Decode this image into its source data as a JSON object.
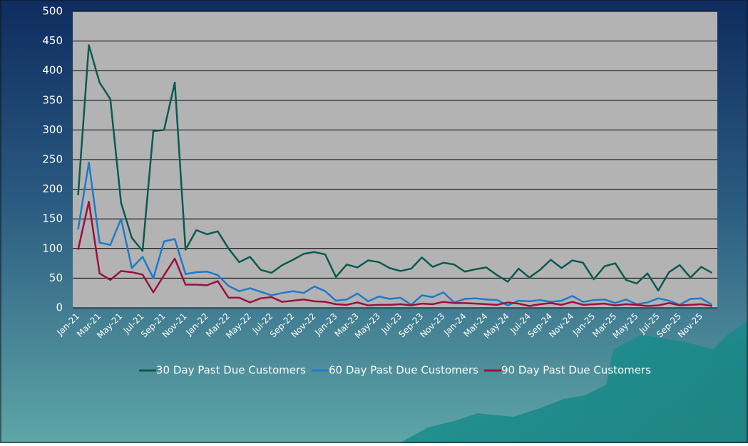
{
  "chart_data": {
    "type": "line",
    "categories": [
      "Jan-21",
      null,
      "Mar-21",
      null,
      "May-21",
      null,
      "Jul-21",
      null,
      "Sep-21",
      null,
      "Nov-21",
      null,
      "Jan-22",
      null,
      "Mar-22",
      null,
      "May-22",
      null,
      "Jul-22",
      null,
      "Sep-22",
      null,
      "Nov-22",
      null,
      "Jan-23",
      null,
      "Mar-23",
      null,
      "May-23",
      null,
      "Jul-23",
      null,
      "Sep-23",
      null,
      "Nov-23",
      null,
      "Jan-24",
      null,
      "Mar-24",
      null,
      "May-24",
      null,
      "Jul-24",
      null,
      "Sep-24",
      null,
      "Nov-24",
      null,
      "Jan-25",
      null,
      "Mar-25",
      null,
      "May-25",
      null,
      "Jul-25",
      null,
      "Sep-25",
      null,
      "Nov-25",
      null
    ],
    "series": [
      {
        "name": "30 Day Past Due Customers",
        "color": "#0b5a4e",
        "values": [
          190,
          443,
          380,
          352,
          177,
          118,
          96,
          298,
          300,
          380,
          98,
          131,
          124,
          129,
          100,
          77,
          86,
          64,
          59,
          72,
          81,
          91,
          94,
          90,
          52,
          73,
          68,
          80,
          77,
          67,
          62,
          66,
          85,
          69,
          76,
          73,
          61,
          65,
          68,
          55,
          44,
          66,
          51,
          64,
          81,
          67,
          80,
          76,
          48,
          70,
          75,
          47,
          41,
          58,
          29,
          60,
          72,
          51,
          69,
          59
        ]
      },
      {
        "name": "60 Day Past Due Customers",
        "color": "#1f7ac8",
        "values": [
          132,
          245,
          110,
          106,
          150,
          67,
          86,
          50,
          112,
          116,
          57,
          60,
          61,
          55,
          37,
          28,
          33,
          27,
          21,
          25,
          28,
          25,
          36,
          28,
          12,
          14,
          24,
          11,
          19,
          15,
          17,
          5,
          21,
          18,
          26,
          9,
          15,
          16,
          14,
          13,
          4,
          12,
          11,
          13,
          10,
          12,
          20,
          10,
          13,
          14,
          8,
          14,
          6,
          9,
          16,
          12,
          5,
          15,
          16,
          5
        ]
      },
      {
        "name": "90 Day Past Due Customers",
        "color": "#9a1040",
        "values": [
          98,
          179,
          58,
          47,
          62,
          60,
          56,
          26,
          55,
          83,
          39,
          39,
          38,
          45,
          17,
          17,
          9,
          16,
          18,
          10,
          12,
          14,
          11,
          10,
          6,
          5,
          9,
          4,
          5,
          5,
          6,
          4,
          7,
          6,
          10,
          8,
          8,
          7,
          6,
          5,
          9,
          7,
          3,
          6,
          8,
          5,
          10,
          5,
          6,
          7,
          4,
          6,
          5,
          3,
          4,
          8,
          4,
          5,
          6,
          3
        ]
      }
    ],
    "ylim": [
      0,
      500
    ],
    "yticks": [
      0,
      50,
      100,
      150,
      200,
      250,
      300,
      350,
      400,
      450,
      500
    ],
    "grid": true,
    "legend": "bottom"
  }
}
